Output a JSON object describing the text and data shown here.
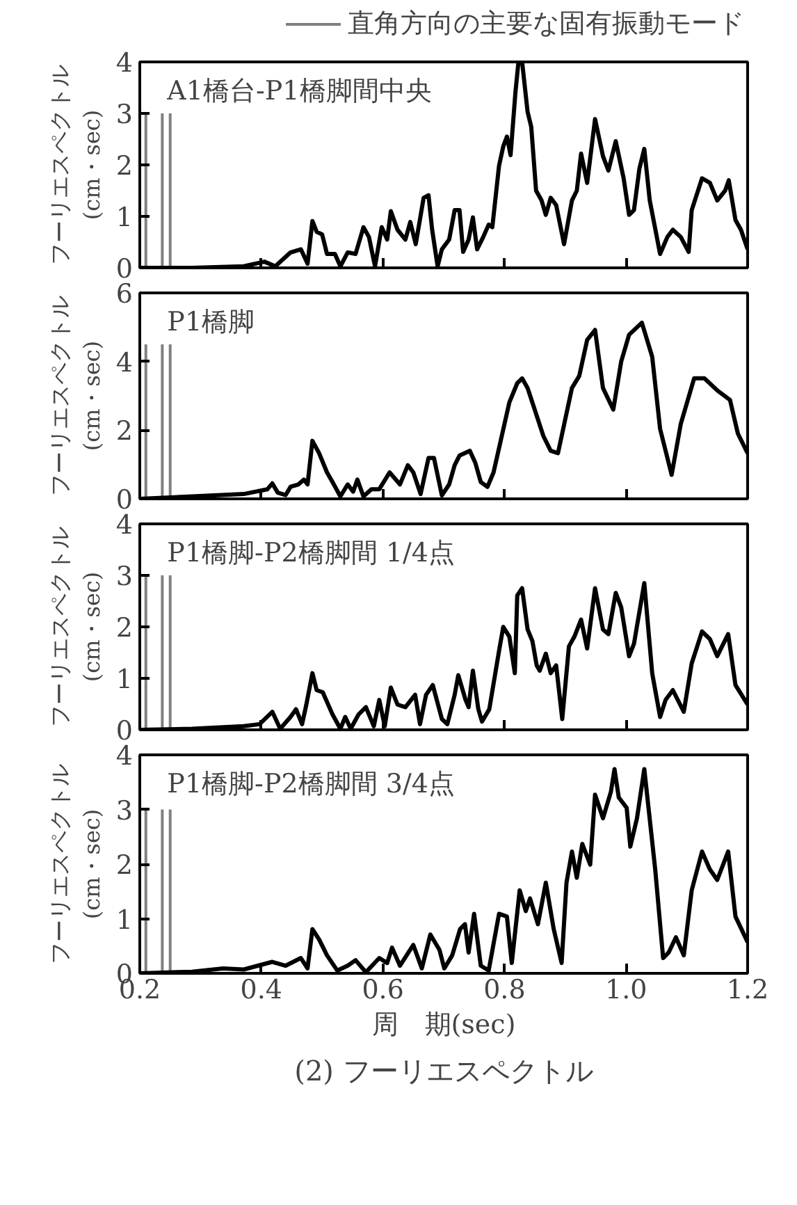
{
  "chart_data": [
    {
      "type": "line",
      "ylabel": "フーリエスペクトル\n(cm・sec)",
      "annotations": [
        "A1橋台-P1橋脚間中央"
      ],
      "xlim": [
        0.2,
        1.2
      ],
      "ylim": [
        0,
        4
      ],
      "xticks": [
        0.2,
        0.4,
        0.6,
        0.8,
        1.0,
        1.2
      ],
      "yticks": [
        0,
        1,
        2,
        3,
        4
      ],
      "tick_labels": "y",
      "legend": "top right",
      "ref_lines": [
        {
          "axis": "x",
          "value": 0.21,
          "label": "直角方向の主要な固有振動モード",
          "color": "#808080"
        },
        {
          "axis": "x",
          "value": 0.237,
          "color": "#808080"
        },
        {
          "axis": "x",
          "value": 0.25,
          "color": "#808080"
        }
      ],
      "series": [
        {
          "color": "#000000",
          "x": [
            0.2,
            0.286,
            0.371,
            0.405,
            0.423,
            0.448,
            0.465,
            0.476,
            0.484,
            0.491,
            0.5,
            0.508,
            0.521,
            0.53,
            0.542,
            0.555,
            0.568,
            0.577,
            0.587,
            0.598,
            0.607,
            0.613,
            0.624,
            0.637,
            0.645,
            0.654,
            0.667,
            0.675,
            0.681,
            0.69,
            0.697,
            0.709,
            0.718,
            0.726,
            0.732,
            0.741,
            0.748,
            0.755,
            0.765,
            0.774,
            0.78,
            0.791,
            0.798,
            0.804,
            0.81,
            0.818,
            0.823,
            0.829,
            0.838,
            0.844,
            0.852,
            0.861,
            0.868,
            0.876,
            0.885,
            0.898,
            0.911,
            0.919,
            0.926,
            0.936,
            0.949,
            0.962,
            0.971,
            0.983,
            0.996,
            1.005,
            1.013,
            1.022,
            1.03,
            1.039,
            1.056,
            1.068,
            1.077,
            1.09,
            1.103,
            1.108,
            1.125,
            1.138,
            1.15,
            1.163,
            1.169,
            1.18,
            1.189,
            1.2
          ],
          "values": [
            0,
            0,
            0.03,
            0.12,
            0.03,
            0.3,
            0.36,
            0.08,
            0.91,
            0.7,
            0.65,
            0.27,
            0.27,
            0.03,
            0.3,
            0.27,
            0.79,
            0.6,
            0.03,
            0.79,
            0.55,
            1.1,
            0.74,
            0.55,
            0.89,
            0.46,
            1.36,
            1.41,
            0.74,
            0.03,
            0.36,
            0.55,
            1.12,
            1.12,
            0.31,
            0.55,
            0.98,
            0.36,
            0.6,
            0.84,
            0.79,
            1.98,
            2.36,
            2.55,
            2.19,
            3.41,
            4.0,
            4.0,
            3.03,
            2.74,
            1.5,
            1.31,
            1.03,
            1.36,
            1.22,
            0.46,
            1.31,
            1.5,
            2.22,
            1.65,
            2.89,
            2.17,
            1.89,
            2.46,
            1.74,
            1.03,
            1.12,
            1.93,
            2.31,
            1.31,
            0.27,
            0.6,
            0.74,
            0.6,
            0.31,
            1.12,
            1.74,
            1.65,
            1.31,
            1.5,
            1.7,
            0.93,
            0.74,
            0.36
          ]
        }
      ]
    },
    {
      "type": "line",
      "ylabel": "フーリエスペクトル\n(cm・sec)",
      "annotations": [
        "P1橋脚"
      ],
      "xlim": [
        0.2,
        1.2
      ],
      "ylim": [
        0,
        6
      ],
      "xticks": [
        0.2,
        0.4,
        0.6,
        0.8,
        1.0,
        1.2
      ],
      "yticks": [
        0,
        2,
        4,
        6
      ],
      "tick_labels": "y",
      "ref_lines": [
        {
          "axis": "x",
          "value": 0.21,
          "color": "#808080"
        },
        {
          "axis": "x",
          "value": 0.237,
          "color": "#808080"
        },
        {
          "axis": "x",
          "value": 0.25,
          "color": "#808080"
        }
      ],
      "series": [
        {
          "color": "#000000",
          "x": [
            0.2,
            0.286,
            0.371,
            0.41,
            0.418,
            0.427,
            0.44,
            0.448,
            0.461,
            0.47,
            0.476,
            0.484,
            0.495,
            0.508,
            0.517,
            0.53,
            0.542,
            0.551,
            0.558,
            0.568,
            0.581,
            0.594,
            0.611,
            0.628,
            0.641,
            0.65,
            0.662,
            0.675,
            0.684,
            0.697,
            0.709,
            0.718,
            0.726,
            0.743,
            0.752,
            0.761,
            0.772,
            0.782,
            0.808,
            0.821,
            0.829,
            0.838,
            0.864,
            0.876,
            0.888,
            0.911,
            0.923,
            0.936,
            0.949,
            0.962,
            0.979,
            0.992,
            1.005,
            1.026,
            1.043,
            1.056,
            1.075,
            1.09,
            1.112,
            1.129,
            1.15,
            1.171,
            1.184,
            1.2
          ],
          "values": [
            0,
            0.07,
            0.14,
            0.28,
            0.45,
            0.18,
            0.11,
            0.35,
            0.42,
            0.56,
            0.42,
            1.69,
            1.33,
            0.77,
            0.49,
            0.07,
            0.42,
            0.21,
            0.56,
            0.07,
            0.28,
            0.28,
            0.77,
            0.42,
            0.98,
            0.77,
            0.14,
            1.19,
            1.19,
            0.1,
            0.42,
            0.98,
            1.26,
            1.4,
            1.05,
            0.49,
            0.35,
            0.77,
            2.81,
            3.37,
            3.51,
            3.23,
            1.83,
            1.4,
            1.33,
            3.23,
            3.58,
            4.63,
            4.92,
            3.23,
            2.6,
            4.0,
            4.78,
            5.13,
            4.14,
            2.04,
            0.7,
            2.18,
            3.51,
            3.51,
            3.16,
            2.88,
            1.9,
            1.33
          ]
        }
      ]
    },
    {
      "type": "line",
      "ylabel": "フーリエスペクトル\n(cm・sec)",
      "annotations": [
        "P1橋脚-P2橋脚間 1/4点"
      ],
      "xlim": [
        0.2,
        1.2
      ],
      "ylim": [
        0,
        4
      ],
      "xticks": [
        0.2,
        0.4,
        0.6,
        0.8,
        1.0,
        1.2
      ],
      "yticks": [
        0,
        1,
        2,
        3,
        4
      ],
      "tick_labels": "y",
      "ref_lines": [
        {
          "axis": "x",
          "value": 0.21,
          "color": "#808080"
        },
        {
          "axis": "x",
          "value": 0.237,
          "color": "#808080"
        },
        {
          "axis": "x",
          "value": 0.25,
          "color": "#808080"
        }
      ],
      "series": [
        {
          "color": "#000000",
          "x": [
            0.2,
            0.286,
            0.371,
            0.397,
            0.418,
            0.431,
            0.448,
            0.457,
            0.467,
            0.474,
            0.484,
            0.491,
            0.501,
            0.517,
            0.53,
            0.538,
            0.547,
            0.56,
            0.572,
            0.585,
            0.594,
            0.603,
            0.613,
            0.624,
            0.637,
            0.653,
            0.661,
            0.671,
            0.682,
            0.697,
            0.706,
            0.718,
            0.724,
            0.736,
            0.741,
            0.748,
            0.757,
            0.763,
            0.775,
            0.791,
            0.798,
            0.808,
            0.817,
            0.821,
            0.829,
            0.838,
            0.846,
            0.853,
            0.858,
            0.868,
            0.876,
            0.885,
            0.895,
            0.906,
            0.915,
            0.926,
            0.936,
            0.949,
            0.962,
            0.971,
            0.983,
            0.992,
            1.005,
            1.013,
            1.03,
            1.043,
            1.056,
            1.065,
            1.077,
            1.095,
            1.108,
            1.125,
            1.138,
            1.15,
            1.168,
            1.18,
            1.2
          ],
          "values": [
            0,
            0.02,
            0.07,
            0.11,
            0.35,
            0.02,
            0.25,
            0.4,
            0.11,
            0.49,
            1.1,
            0.77,
            0.73,
            0.3,
            0.02,
            0.25,
            0.02,
            0.3,
            0.44,
            0.07,
            0.58,
            0.07,
            0.82,
            0.49,
            0.44,
            0.68,
            0.11,
            0.68,
            0.87,
            0.21,
            0.11,
            0.68,
            1.06,
            0.58,
            0.44,
            1.15,
            0.4,
            0.16,
            0.4,
            1.53,
            2.0,
            1.81,
            1.1,
            2.61,
            2.75,
            1.95,
            1.72,
            1.25,
            1.15,
            1.48,
            1.1,
            1.25,
            0.21,
            1.62,
            1.81,
            2.14,
            1.58,
            2.75,
            1.95,
            1.86,
            2.66,
            2.38,
            1.43,
            1.67,
            2.85,
            1.1,
            0.25,
            0.58,
            0.77,
            0.35,
            1.29,
            1.91,
            1.76,
            1.43,
            1.86,
            0.87,
            0.49
          ]
        }
      ]
    },
    {
      "type": "line",
      "xlabel": "周　期(sec)",
      "ylabel": "フーリエスペクトル\n(cm・sec)",
      "annotations": [
        "P1橋脚-P2橋脚間 3/4点",
        "(2) フーリエスペクトル"
      ],
      "xlim": [
        0.2,
        1.2
      ],
      "ylim": [
        0,
        4
      ],
      "xticks": [
        0.2,
        0.4,
        0.6,
        0.8,
        {
          "value": 1.0,
          "label": "1.0"
        },
        1.2
      ],
      "yticks": [
        0,
        1,
        2,
        3,
        4
      ],
      "ref_lines": [
        {
          "axis": "x",
          "value": 0.21,
          "color": "#808080"
        },
        {
          "axis": "x",
          "value": 0.237,
          "color": "#808080"
        },
        {
          "axis": "x",
          "value": 0.25,
          "color": "#808080"
        }
      ],
      "series": [
        {
          "color": "#000000",
          "x": [
            0.2,
            0.286,
            0.337,
            0.371,
            0.418,
            0.44,
            0.465,
            0.476,
            0.484,
            0.495,
            0.508,
            0.525,
            0.542,
            0.555,
            0.572,
            0.594,
            0.607,
            0.615,
            0.628,
            0.65,
            0.664,
            0.678,
            0.693,
            0.701,
            0.714,
            0.727,
            0.735,
            0.741,
            0.75,
            0.761,
            0.774,
            0.791,
            0.804,
            0.812,
            0.825,
            0.835,
            0.842,
            0.855,
            0.868,
            0.881,
            0.894,
            0.902,
            0.911,
            0.919,
            0.928,
            0.941,
            0.949,
            0.962,
            0.975,
            0.981,
            0.988,
            1.001,
            1.007,
            1.018,
            1.03,
            1.048,
            1.061,
            1.07,
            1.082,
            1.095,
            1.108,
            1.125,
            1.138,
            1.15,
            1.168,
            1.18,
            1.2
          ],
          "values": [
            0,
            0.03,
            0.09,
            0.07,
            0.21,
            0.14,
            0.28,
            0.09,
            0.81,
            0.62,
            0.33,
            0.05,
            0.14,
            0.24,
            0.02,
            0.28,
            0.19,
            0.47,
            0.14,
            0.52,
            0.09,
            0.71,
            0.43,
            0.09,
            0.33,
            0.81,
            0.9,
            0.38,
            1.09,
            0.14,
            0.05,
            1.09,
            1.04,
            0.19,
            1.52,
            1.14,
            1.37,
            0.9,
            1.66,
            0.81,
            0.19,
            1.66,
            2.23,
            1.75,
            2.37,
            1.99,
            3.27,
            2.84,
            3.32,
            3.74,
            3.22,
            3.03,
            2.32,
            2.84,
            3.74,
            1.9,
            0.28,
            0.38,
            0.66,
            0.33,
            1.52,
            2.23,
            1.9,
            1.71,
            2.23,
            1.04,
            0.57
          ]
        }
      ]
    }
  ]
}
